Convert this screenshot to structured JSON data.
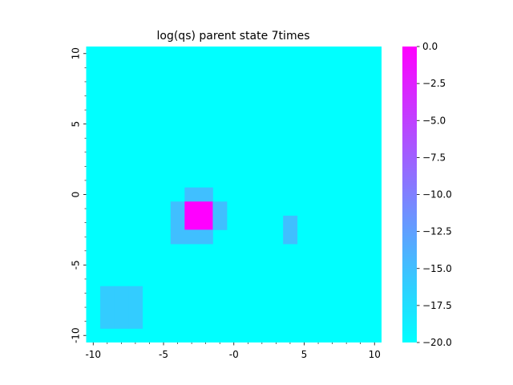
{
  "chart_data": {
    "type": "heatmap",
    "title": "log(qs) parent state  7times",
    "xlabel": "",
    "ylabel": "",
    "xlim": [
      -10.5,
      10.5
    ],
    "ylim": [
      -10.5,
      10.5
    ],
    "grid": false,
    "x_major_ticks": [
      -10,
      -5,
      0,
      5,
      10
    ],
    "x_tick_labels": [
      "-10",
      "-5",
      "-0",
      "5",
      "10"
    ],
    "y_major_ticks": [
      10,
      5,
      0,
      -5,
      -10
    ],
    "y_tick_labels": [
      "10",
      "5",
      "0",
      "-5",
      "-10"
    ],
    "minor_ticks_step": 1,
    "background_value": -20.0,
    "cells": [
      {
        "x": -3,
        "y": 0,
        "value": -15.0
      },
      {
        "x": -2,
        "y": 0,
        "value": -15.0
      },
      {
        "x": -4,
        "y": -1,
        "value": -15.0
      },
      {
        "x": -3,
        "y": -1,
        "value": 0.0
      },
      {
        "x": -2,
        "y": -1,
        "value": 0.0
      },
      {
        "x": -1,
        "y": -1,
        "value": -15.0
      },
      {
        "x": -4,
        "y": -2,
        "value": -15.0
      },
      {
        "x": -3,
        "y": -2,
        "value": 0.0
      },
      {
        "x": -2,
        "y": -2,
        "value": 0.0
      },
      {
        "x": -1,
        "y": -2,
        "value": -15.0
      },
      {
        "x": -4,
        "y": -3,
        "value": -15.0
      },
      {
        "x": -3,
        "y": -3,
        "value": -15.0
      },
      {
        "x": -2,
        "y": -3,
        "value": -15.0
      },
      {
        "x": 4,
        "y": -2,
        "value": -15.0
      },
      {
        "x": 4,
        "y": -3,
        "value": -15.0
      },
      {
        "x": -9,
        "y": -7,
        "value": -16.0
      },
      {
        "x": -8,
        "y": -7,
        "value": -16.0
      },
      {
        "x": -7,
        "y": -7,
        "value": -16.0
      },
      {
        "x": -9,
        "y": -8,
        "value": -16.0
      },
      {
        "x": -8,
        "y": -8,
        "value": -16.0
      },
      {
        "x": -7,
        "y": -8,
        "value": -16.0
      },
      {
        "x": -9,
        "y": -9,
        "value": -16.0
      },
      {
        "x": -8,
        "y": -9,
        "value": -16.0
      },
      {
        "x": -7,
        "y": -9,
        "value": -16.0
      }
    ],
    "colorbar": {
      "colormap": "cool",
      "range": [
        -20.0,
        0.0
      ],
      "ticks": [
        0.0,
        -2.5,
        -5.0,
        -7.5,
        -10.0,
        -12.5,
        -15.0,
        -17.5,
        -20.0
      ],
      "tick_labels": [
        "0.0",
        "−2.5",
        "−5.0",
        "−7.5",
        "−10.0",
        "−12.5",
        "−15.0",
        "−17.5",
        "−20.0"
      ]
    }
  }
}
